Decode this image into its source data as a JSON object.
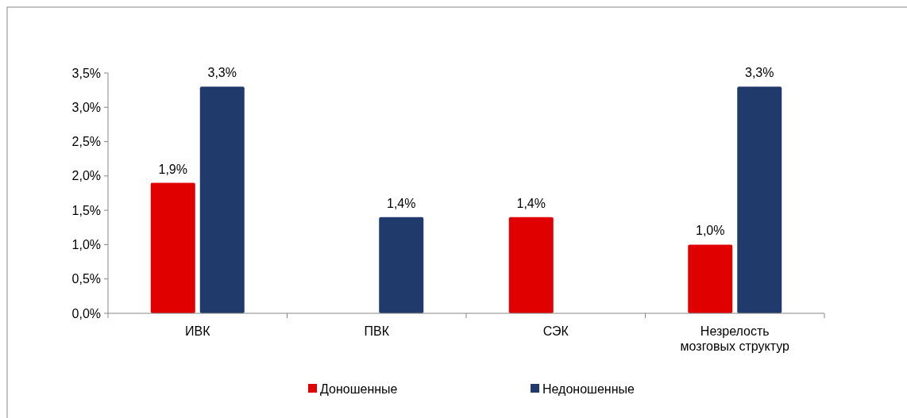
{
  "chart_data": {
    "type": "bar",
    "categories": [
      "ИВК",
      "ПВК",
      "СЭК",
      "Незрелость мозговых структур"
    ],
    "series": [
      {
        "name": "Доношенные",
        "color": "#e00000",
        "values": [
          1.9,
          null,
          1.4,
          1.0
        ],
        "value_labels": [
          "1,9%",
          null,
          "1,4%",
          "1,0%"
        ]
      },
      {
        "name": "Недоношенные",
        "color": "#1f3a6b",
        "values": [
          3.3,
          1.4,
          null,
          3.3
        ],
        "value_labels": [
          "3,3%",
          "1,4%",
          null,
          "3,3%"
        ]
      }
    ],
    "ylim": [
      0,
      3.5
    ],
    "yticks": [
      {
        "value": 0,
        "label": "0,0%"
      },
      {
        "value": 0.5,
        "label": "0,5%"
      },
      {
        "value": 1,
        "label": "1,0%"
      },
      {
        "value": 1.5,
        "label": "1,5%"
      },
      {
        "value": 2,
        "label": "2,0%"
      },
      {
        "value": 2.5,
        "label": "2,5%"
      },
      {
        "value": 3,
        "label": "3,0%"
      },
      {
        "value": 3.5,
        "label": "3,5%"
      }
    ],
    "legend": "bottom"
  }
}
